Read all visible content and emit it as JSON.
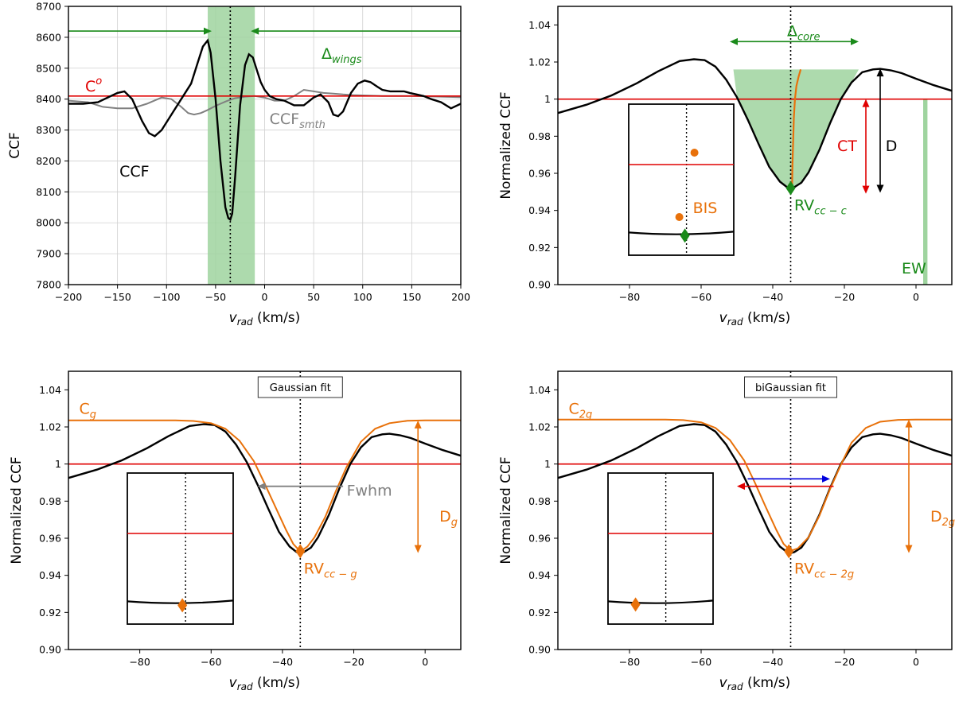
{
  "colors": {
    "black": "#000000",
    "red": "#e00000",
    "green": "#1a8a1a",
    "green_fill": "#9fd49f",
    "orange": "#e8710a",
    "gray": "#808080",
    "blue": "#0000dd"
  },
  "chart_data": [
    {
      "id": "tl",
      "type": "line",
      "grid": true,
      "xlabel": "v",
      "xlabel_sub": "rad",
      "xlabel_units": " (km/s)",
      "ylabel": "CCF",
      "xlim": [
        -200,
        200
      ],
      "ylim": [
        7800,
        8700
      ],
      "xticks": [
        -200,
        -150,
        -100,
        -50,
        0,
        50,
        100,
        150,
        200
      ],
      "yticks": [
        7800,
        7900,
        8000,
        8100,
        8200,
        8300,
        8400,
        8500,
        8600,
        8700
      ],
      "band": [
        -58,
        -10
      ],
      "vline": -35,
      "hline": 8410,
      "series": [
        {
          "name": "CCF",
          "x": [
            -200,
            -185,
            -170,
            -160,
            -150,
            -143,
            -135,
            -125,
            -118,
            -112,
            -105,
            -95,
            -85,
            -75,
            -68,
            -63,
            -58,
            -55,
            -50,
            -45,
            -40,
            -37,
            -35,
            -33,
            -30,
            -25,
            -20,
            -16,
            -12,
            -8,
            -4,
            0,
            5,
            12,
            20,
            30,
            40,
            50,
            57,
            65,
            70,
            75,
            80,
            88,
            95,
            102,
            108,
            115,
            120,
            128,
            135,
            142,
            148,
            155,
            162,
            170,
            180,
            190,
            200
          ],
          "y": [
            8385,
            8385,
            8390,
            8405,
            8420,
            8425,
            8400,
            8330,
            8290,
            8280,
            8300,
            8350,
            8400,
            8450,
            8520,
            8570,
            8590,
            8550,
            8400,
            8200,
            8050,
            8015,
            8010,
            8030,
            8150,
            8380,
            8510,
            8545,
            8535,
            8495,
            8455,
            8430,
            8410,
            8400,
            8395,
            8380,
            8380,
            8405,
            8415,
            8390,
            8350,
            8345,
            8360,
            8420,
            8450,
            8460,
            8455,
            8440,
            8430,
            8425,
            8425,
            8425,
            8420,
            8415,
            8410,
            8400,
            8390,
            8370,
            8385
          ]
        },
        {
          "name": "CCF smth",
          "x": [
            -200,
            -180,
            -165,
            -150,
            -135,
            -120,
            -105,
            -95,
            -85,
            -78,
            -72,
            -65,
            -58,
            -50,
            -45,
            -40,
            -35,
            -30,
            -20,
            -10,
            0,
            10,
            20,
            30,
            40,
            50,
            60,
            70,
            80,
            90,
            100,
            120,
            150,
            180,
            200
          ],
          "y": [
            8395,
            8390,
            8375,
            8370,
            8370,
            8385,
            8405,
            8400,
            8375,
            8355,
            8350,
            8355,
            8365,
            8378,
            8385,
            8392,
            8398,
            8403,
            8408,
            8410,
            8405,
            8395,
            8395,
            8410,
            8430,
            8425,
            8420,
            8418,
            8415,
            8413,
            8412,
            8410,
            8410,
            8408,
            8406
          ]
        }
      ],
      "labels": {
        "c_o": "C",
        "c_o_sup": "o",
        "delta": "Δ",
        "delta_sub": "wings",
        "ccf": "CCF",
        "ccf_smth": "CCF",
        "ccf_smth_sub": "smth"
      }
    },
    {
      "id": "tr",
      "type": "line",
      "grid": false,
      "xlabel": "v",
      "xlabel_sub": "rad",
      "xlabel_units": " (km/s)",
      "ylabel": "Normalized CCF",
      "xlim": [
        -100,
        10
      ],
      "ylim": [
        0.9,
        1.05
      ],
      "xticks": [
        -80,
        -60,
        -40,
        -20,
        0
      ],
      "yticks": [
        0.9,
        0.92,
        0.94,
        0.96,
        0.98,
        1.0,
        1.02,
        1.04
      ],
      "vline": -35,
      "hline": 1.0,
      "labels": {
        "delta": "Δ",
        "delta_sub": "core",
        "ct": "CT",
        "d": "D",
        "ew": "EW",
        "bis": "BIS",
        "rv": "RV",
        "rv_sub": "cc − c"
      }
    },
    {
      "id": "bl",
      "type": "line",
      "grid": false,
      "xlabel": "v",
      "xlabel_sub": "rad",
      "xlabel_units": " (km/s)",
      "ylabel": "Normalized CCF",
      "xlim": [
        -100,
        10
      ],
      "ylim": [
        0.9,
        1.05
      ],
      "xticks": [
        -80,
        -60,
        -40,
        -20,
        0
      ],
      "yticks": [
        0.9,
        0.92,
        0.94,
        0.96,
        0.98,
        1.0,
        1.02,
        1.04
      ],
      "vline": -35,
      "hline": 1.0,
      "labels": {
        "box": "Gaussian fit",
        "c": "C",
        "c_sub": "g",
        "fwhm": "Fwhm",
        "d": "D",
        "d_sub": "g",
        "rv": "RV",
        "rv_sub": "cc − g"
      }
    },
    {
      "id": "br",
      "type": "line",
      "grid": false,
      "xlabel": "v",
      "xlabel_sub": "rad",
      "xlabel_units": " (km/s)",
      "ylabel": "Normalized CCF",
      "xlim": [
        -100,
        10
      ],
      "ylim": [
        0.9,
        1.05
      ],
      "xticks": [
        -80,
        -60,
        -40,
        -20,
        0
      ],
      "yticks": [
        0.9,
        0.92,
        0.94,
        0.96,
        0.98,
        1.0,
        1.02,
        1.04
      ],
      "vline": -35,
      "hline": 1.0,
      "labels": {
        "box": "biGaussian fit",
        "c": "C",
        "c_sub": "2g",
        "d": "D",
        "d_sub": "2g",
        "rv": "RV",
        "rv_sub": "cc − 2g"
      }
    }
  ],
  "normalized_ccf": {
    "x": [
      -100,
      -92,
      -85,
      -78,
      -72,
      -66,
      -62,
      -59,
      -56,
      -53,
      -50,
      -47,
      -44,
      -41,
      -38,
      -36,
      -35,
      -34,
      -32,
      -30,
      -27,
      -24,
      -21,
      -18,
      -15,
      -12,
      -10,
      -7,
      -4,
      0,
      5,
      10
    ],
    "y": [
      0.9925,
      0.997,
      1.002,
      1.0085,
      1.015,
      1.0205,
      1.0215,
      1.021,
      1.0175,
      1.0105,
      1.001,
      0.989,
      0.976,
      0.9635,
      0.9555,
      0.9525,
      0.952,
      0.9525,
      0.955,
      0.9605,
      0.9725,
      0.987,
      1.0,
      1.009,
      1.0145,
      1.016,
      1.0163,
      1.0155,
      1.014,
      1.011,
      1.0075,
      1.0045
    ]
  },
  "gaussian_fit": {
    "x": [
      -100,
      -80,
      -70,
      -65,
      -60,
      -56,
      -52,
      -48,
      -45,
      -42,
      -39,
      -37,
      -35,
      -33,
      -31,
      -28,
      -25,
      -22,
      -18,
      -14,
      -10,
      -5,
      0,
      10
    ],
    "y": [
      1.0235,
      1.0235,
      1.0235,
      1.0232,
      1.022,
      1.019,
      1.0125,
      1.0015,
      0.9895,
      0.977,
      0.9645,
      0.957,
      0.9528,
      0.9555,
      0.9605,
      0.9715,
      0.9855,
      0.9985,
      1.012,
      1.019,
      1.022,
      1.0233,
      1.0235,
      1.0235
    ]
  },
  "bigaussian_fit": {
    "x": [
      -100,
      -80,
      -70,
      -65,
      -60,
      -56,
      -52,
      -48,
      -45,
      -42,
      -39,
      -37,
      -35,
      -33,
      -30,
      -27,
      -24,
      -21,
      -18,
      -14,
      -10,
      -5,
      0,
      10
    ],
    "y": [
      1.024,
      1.024,
      1.024,
      1.0237,
      1.0225,
      1.0195,
      1.013,
      1.002,
      0.99,
      0.977,
      0.9645,
      0.957,
      0.9532,
      0.9545,
      0.9605,
      0.972,
      0.9865,
      0.9995,
      1.0115,
      1.0195,
      1.0228,
      1.0238,
      1.024,
      1.024
    ]
  }
}
